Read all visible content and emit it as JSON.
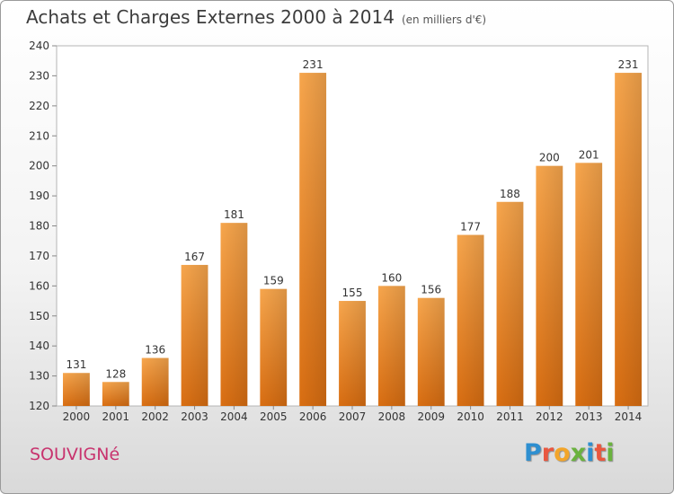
{
  "header": {
    "title": "Achats et Charges Externes 2000 à 2014",
    "unit": "(en milliers d'€)"
  },
  "footer": {
    "commune": "SOUVIGNé",
    "logo_letters": [
      "P",
      "r",
      "o",
      "x",
      "i",
      "t",
      "i"
    ],
    "logo_colors": [
      "#2e8fd0",
      "#e9573f",
      "#f2a52a",
      "#6ab23e",
      "#2e8fd0",
      "#e9573f",
      "#6ab23e"
    ]
  },
  "chart_data": {
    "type": "bar",
    "categories": [
      "2000",
      "2001",
      "2002",
      "2003",
      "2004",
      "2005",
      "2006",
      "2007",
      "2008",
      "2009",
      "2010",
      "2011",
      "2012",
      "2013",
      "2014"
    ],
    "values": [
      131,
      128,
      136,
      167,
      181,
      159,
      231,
      155,
      160,
      156,
      177,
      188,
      200,
      201,
      231
    ],
    "ylim": [
      120,
      240
    ],
    "yticks": [
      120,
      130,
      140,
      150,
      160,
      170,
      180,
      190,
      200,
      210,
      220,
      230,
      240
    ],
    "grid": false,
    "bar_color": "#f0922e"
  }
}
